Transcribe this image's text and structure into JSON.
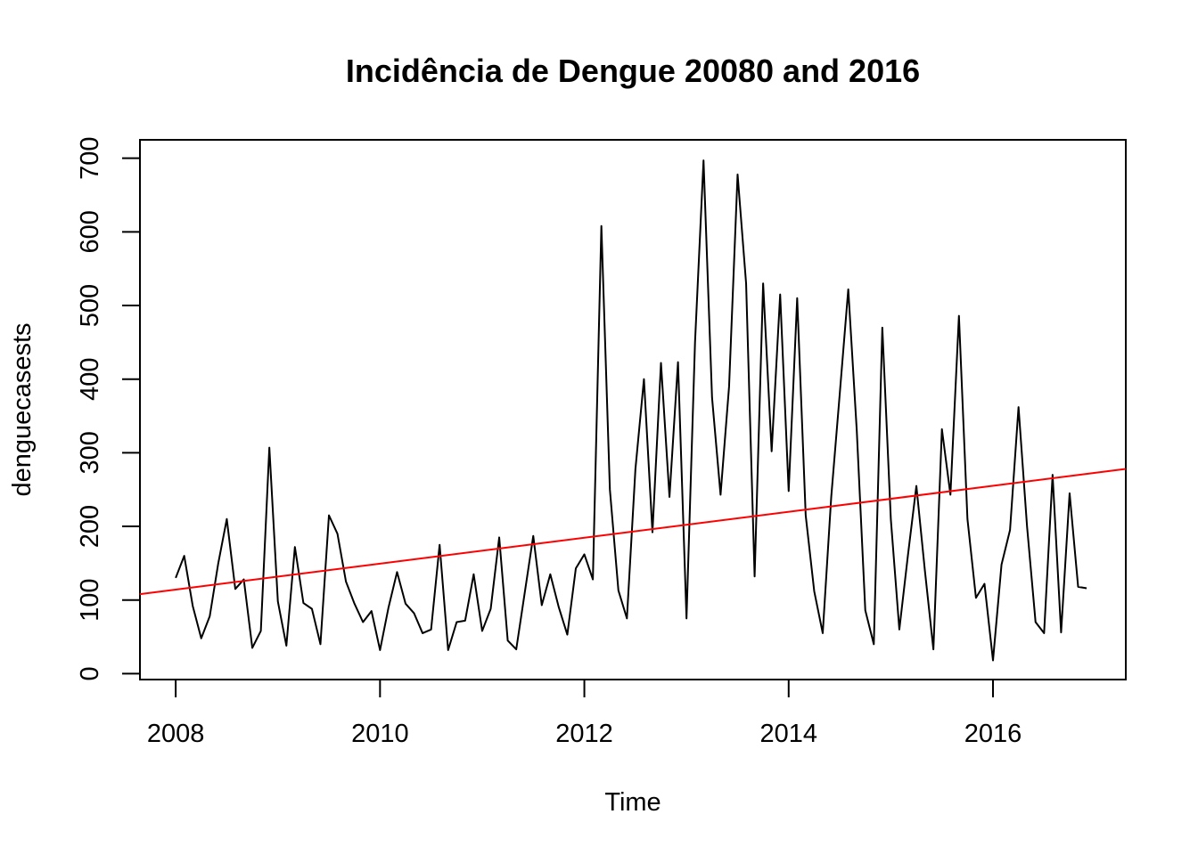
{
  "chart_data": {
    "type": "line",
    "title": "Incidência de Dengue 20080 and 2016",
    "xlabel": "Time",
    "ylabel": "denguecasests",
    "xlim": [
      2007.65,
      2017.3
    ],
    "ylim": [
      -8,
      725
    ],
    "x_ticks": [
      2008,
      2010,
      2012,
      2014,
      2016
    ],
    "y_ticks": [
      0,
      100,
      200,
      300,
      400,
      500,
      600,
      700
    ],
    "x_start": 2008,
    "frequency": 12,
    "grid": false,
    "series": [
      {
        "color": "#000000",
        "values": [
          130,
          160,
          92,
          48,
          78,
          150,
          210,
          115,
          128,
          35,
          58,
          307,
          98,
          38,
          172,
          96,
          88,
          40,
          215,
          190,
          125,
          95,
          70,
          85,
          32,
          90,
          138,
          95,
          82,
          55,
          60,
          175,
          32,
          70,
          72,
          135,
          58,
          88,
          185,
          45,
          33,
          110,
          187,
          93,
          135,
          90,
          53,
          143,
          162,
          128,
          608,
          250,
          113,
          75,
          278,
          400,
          192,
          422,
          240,
          423,
          75,
          450,
          697,
          375,
          243,
          390,
          678,
          530,
          132,
          530,
          302,
          515,
          248,
          510,
          215,
          112,
          55,
          240,
          380,
          522,
          330,
          86,
          40,
          470,
          210,
          60,
          160,
          255,
          140,
          33,
          332,
          243,
          486,
          210,
          103,
          122,
          18,
          148,
          195,
          362,
          200,
          70,
          55,
          270,
          56,
          245,
          118,
          116
        ]
      }
    ],
    "trend_line": {
      "color": "#ff0000",
      "x": [
        2007.65,
        2017.3
      ],
      "y": [
        108,
        278
      ]
    }
  }
}
